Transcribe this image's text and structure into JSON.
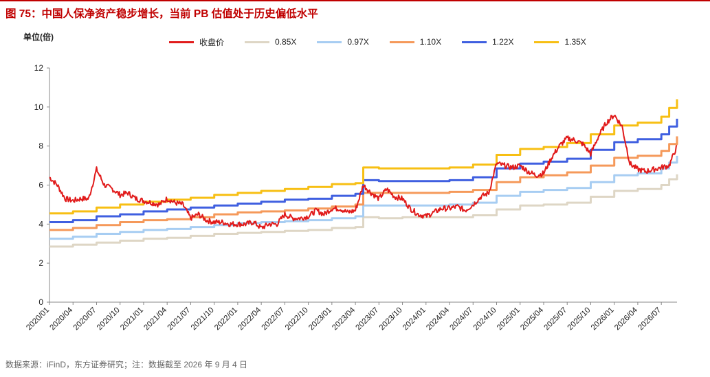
{
  "figure": {
    "title": "图 75：中国人保净资产稳步增长，当前 PB 估值处于历史偏低水平",
    "unit_label": "单位(倍)",
    "source": "数据来源：iFinD，东方证券研究；注：数据截至 2026 年 9 月 4 日"
  },
  "colors": {
    "title": "#c00000",
    "price": "#e11b1b",
    "pb085": "#ded6c5",
    "pb097": "#a7cdf2",
    "pb110": "#f5995a",
    "pb122": "#3f5fe0",
    "pb135": "#f7bf13"
  },
  "chart_data": {
    "type": "line",
    "xlabel": "",
    "ylabel": "单位(倍)",
    "ylim": [
      0,
      12
    ],
    "yticks": [
      0,
      2,
      4,
      6,
      8,
      10,
      12
    ],
    "xlim": [
      "2020/01",
      "2026/09"
    ],
    "x_tick_labels": [
      "2020/01",
      "2020/04",
      "2020/07",
      "2020/10",
      "2021/01",
      "2021/04",
      "2021/07",
      "2021/10",
      "2022/01",
      "2022/04",
      "2022/07",
      "2022/10",
      "2023/01",
      "2023/04",
      "2023/07",
      "2023/10",
      "2024/01",
      "2024/04",
      "2024/07",
      "2024/10",
      "2025/01",
      "2025/04",
      "2025/07",
      "2025/10",
      "2026/01",
      "2026/04",
      "2026/07"
    ],
    "grid": false,
    "legend": "top",
    "series": [
      {
        "name": "收盘价",
        "color_key": "price",
        "x": [
          "2020/01",
          "2020/02",
          "2020/03",
          "2020/04",
          "2020/05",
          "2020/06",
          "2020/07",
          "2020/08",
          "2020/09",
          "2020/10",
          "2020/11",
          "2020/12",
          "2021/01",
          "2021/02",
          "2021/03",
          "2021/04",
          "2021/05",
          "2021/06",
          "2021/07",
          "2021/08",
          "2021/09",
          "2021/10",
          "2021/11",
          "2021/12",
          "2022/01",
          "2022/02",
          "2022/03",
          "2022/04",
          "2022/05",
          "2022/06",
          "2022/07",
          "2022/08",
          "2022/09",
          "2022/10",
          "2022/11",
          "2022/12",
          "2023/01",
          "2023/02",
          "2023/03",
          "2023/04",
          "2023/05",
          "2023/06",
          "2023/07",
          "2023/08",
          "2023/09",
          "2023/10",
          "2023/11",
          "2023/12",
          "2024/01",
          "2024/02",
          "2024/03",
          "2024/04",
          "2024/05",
          "2024/06",
          "2024/07",
          "2024/08",
          "2024/09",
          "2024/10",
          "2024/11",
          "2024/12",
          "2025/01",
          "2025/02",
          "2025/03",
          "2025/04",
          "2025/05",
          "2025/06",
          "2025/07",
          "2025/08",
          "2025/09",
          "2025/10",
          "2025/11",
          "2025/12",
          "2026/01",
          "2026/02",
          "2026/03",
          "2026/04",
          "2026/05",
          "2026/06",
          "2026/07",
          "2026/08",
          "2026/09"
        ],
        "values": [
          6.4,
          6.0,
          5.3,
          5.2,
          5.3,
          5.3,
          6.8,
          6.0,
          5.8,
          5.5,
          5.6,
          5.3,
          5.2,
          5.1,
          5.0,
          5.3,
          5.1,
          5.0,
          4.3,
          4.5,
          4.2,
          4.1,
          4.1,
          4.0,
          4.0,
          4.0,
          4.1,
          3.8,
          4.0,
          4.0,
          4.5,
          4.3,
          4.3,
          4.4,
          4.7,
          4.5,
          4.8,
          4.8,
          4.6,
          4.7,
          6.0,
          5.6,
          5.3,
          5.8,
          5.4,
          5.3,
          4.8,
          4.5,
          4.4,
          4.6,
          4.8,
          4.8,
          4.9,
          4.7,
          5.0,
          5.4,
          5.6,
          7.1,
          7.0,
          6.9,
          7.0,
          6.7,
          6.5,
          6.6,
          7.4,
          8.0,
          8.4,
          8.3,
          8.1,
          7.6,
          8.5,
          9.2,
          9.6,
          9.0,
          7.1,
          6.8,
          6.7,
          6.8,
          6.9,
          7.0,
          8.0
        ]
      },
      {
        "name": "0.85X",
        "color_key": "pb085",
        "x": [
          "2020/01",
          "2020/04",
          "2020/07",
          "2020/10",
          "2021/01",
          "2021/04",
          "2021/07",
          "2021/10",
          "2022/01",
          "2022/04",
          "2022/07",
          "2022/10",
          "2023/01",
          "2023/04",
          "2023/05",
          "2023/07",
          "2023/10",
          "2024/01",
          "2024/04",
          "2024/07",
          "2024/10",
          "2025/01",
          "2025/04",
          "2025/07",
          "2025/10",
          "2026/01",
          "2026/04",
          "2026/07",
          "2026/08",
          "2026/09"
        ],
        "values": [
          2.85,
          2.95,
          3.05,
          3.15,
          3.25,
          3.3,
          3.4,
          3.5,
          3.55,
          3.6,
          3.65,
          3.7,
          3.8,
          3.85,
          4.35,
          4.3,
          4.35,
          4.35,
          4.35,
          4.45,
          4.75,
          4.95,
          5.0,
          5.1,
          5.4,
          5.7,
          5.8,
          6.0,
          6.3,
          6.55
        ]
      },
      {
        "name": "0.97X",
        "color_key": "pb097",
        "x": [
          "2020/01",
          "2020/04",
          "2020/07",
          "2020/10",
          "2021/01",
          "2021/04",
          "2021/07",
          "2021/10",
          "2022/01",
          "2022/04",
          "2022/07",
          "2022/10",
          "2023/01",
          "2023/04",
          "2023/05",
          "2023/07",
          "2023/10",
          "2024/01",
          "2024/04",
          "2024/07",
          "2024/10",
          "2025/01",
          "2025/04",
          "2025/07",
          "2025/10",
          "2026/01",
          "2026/04",
          "2026/07",
          "2026/08",
          "2026/09"
        ],
        "values": [
          3.25,
          3.35,
          3.5,
          3.6,
          3.7,
          3.75,
          3.85,
          3.95,
          4.05,
          4.1,
          4.15,
          4.2,
          4.3,
          4.4,
          4.95,
          4.95,
          4.95,
          4.95,
          5.0,
          5.1,
          5.45,
          5.65,
          5.75,
          5.85,
          6.15,
          6.5,
          6.6,
          6.85,
          7.15,
          7.5
        ]
      },
      {
        "name": "1.10X",
        "color_key": "pb110",
        "x": [
          "2020/01",
          "2020/04",
          "2020/07",
          "2020/10",
          "2021/01",
          "2021/04",
          "2021/07",
          "2021/10",
          "2022/01",
          "2022/04",
          "2022/07",
          "2022/10",
          "2023/01",
          "2023/04",
          "2023/05",
          "2023/07",
          "2023/10",
          "2024/01",
          "2024/04",
          "2024/07",
          "2024/10",
          "2025/01",
          "2025/04",
          "2025/07",
          "2025/10",
          "2026/01",
          "2026/04",
          "2026/07",
          "2026/08",
          "2026/09"
        ],
        "values": [
          3.7,
          3.8,
          3.95,
          4.1,
          4.2,
          4.25,
          4.35,
          4.5,
          4.6,
          4.65,
          4.7,
          4.8,
          4.9,
          5.0,
          5.6,
          5.6,
          5.6,
          5.6,
          5.65,
          5.75,
          6.15,
          6.4,
          6.5,
          6.65,
          7.0,
          7.4,
          7.5,
          7.75,
          8.1,
          8.5
        ]
      },
      {
        "name": "1.22X",
        "color_key": "pb122",
        "x": [
          "2020/01",
          "2020/04",
          "2020/07",
          "2020/10",
          "2021/01",
          "2021/04",
          "2021/07",
          "2021/10",
          "2022/01",
          "2022/04",
          "2022/07",
          "2022/10",
          "2023/01",
          "2023/04",
          "2023/05",
          "2023/07",
          "2023/10",
          "2024/01",
          "2024/04",
          "2024/07",
          "2024/10",
          "2025/01",
          "2025/04",
          "2025/07",
          "2025/10",
          "2026/01",
          "2026/04",
          "2026/07",
          "2026/08",
          "2026/09"
        ],
        "values": [
          4.1,
          4.2,
          4.4,
          4.5,
          4.65,
          4.75,
          4.85,
          4.95,
          5.05,
          5.15,
          5.25,
          5.3,
          5.45,
          5.55,
          6.25,
          6.2,
          6.2,
          6.2,
          6.25,
          6.4,
          6.85,
          7.1,
          7.2,
          7.35,
          7.8,
          8.2,
          8.35,
          8.6,
          9.0,
          9.4
        ]
      },
      {
        "name": "1.35X",
        "color_key": "pb135",
        "x": [
          "2020/01",
          "2020/04",
          "2020/07",
          "2020/10",
          "2021/01",
          "2021/04",
          "2021/07",
          "2021/10",
          "2022/01",
          "2022/04",
          "2022/07",
          "2022/10",
          "2023/01",
          "2023/04",
          "2023/05",
          "2023/07",
          "2023/10",
          "2024/01",
          "2024/04",
          "2024/07",
          "2024/10",
          "2025/01",
          "2025/04",
          "2025/07",
          "2025/10",
          "2026/01",
          "2026/04",
          "2026/07",
          "2026/08",
          "2026/09"
        ],
        "values": [
          4.55,
          4.65,
          4.85,
          5.0,
          5.15,
          5.25,
          5.35,
          5.5,
          5.6,
          5.7,
          5.8,
          5.9,
          6.05,
          6.1,
          6.9,
          6.85,
          6.85,
          6.85,
          6.9,
          7.05,
          7.55,
          7.85,
          7.95,
          8.15,
          8.6,
          9.05,
          9.2,
          9.5,
          9.95,
          10.4
        ]
      }
    ]
  }
}
